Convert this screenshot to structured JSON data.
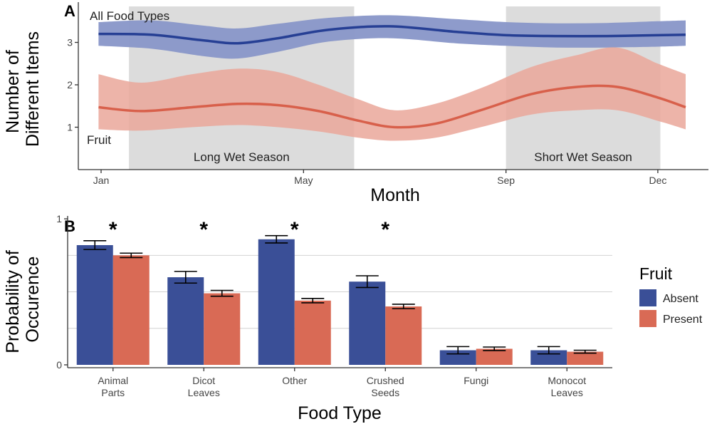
{
  "colors": {
    "absent": "#3a4f97",
    "present": "#d96a55",
    "all_line": "#263f94",
    "all_band": "#8896c8",
    "fruit_line": "#d8604b",
    "fruit_band": "#eaa79a",
    "season": "#dcdcdc",
    "grid": "#d2d2d2",
    "axis": "#333333"
  },
  "chart_data": [
    {
      "type": "line",
      "panel": "A",
      "xlabel": "Month",
      "ylabel": [
        "Number of",
        "Different Items"
      ],
      "x_ticks": [
        {
          "label": "Jan",
          "value": 1
        },
        {
          "label": "May",
          "value": 5
        },
        {
          "label": "Sep",
          "value": 9
        },
        {
          "label": "Dec",
          "value": 12
        }
      ],
      "y_ticks": [
        1,
        2,
        3
      ],
      "xlim": [
        0.55,
        13.0
      ],
      "ylim": [
        0.0,
        3.95
      ],
      "seasons": [
        {
          "label": "Long Wet Season",
          "start": 1.55,
          "end": 6.0
        },
        {
          "label": "Short Wet Season",
          "start": 9.0,
          "end": 12.05
        }
      ],
      "series": [
        {
          "name": "All Food Types",
          "x": [
            0.95,
            2.0,
            3.0,
            3.7,
            4.5,
            5.5,
            6.7,
            8.0,
            9.0,
            10.0,
            11.0,
            12.0,
            12.55
          ],
          "y": [
            3.2,
            3.18,
            3.05,
            2.98,
            3.1,
            3.3,
            3.38,
            3.25,
            3.17,
            3.15,
            3.15,
            3.17,
            3.18
          ],
          "lower": [
            2.92,
            2.85,
            2.68,
            2.62,
            2.78,
            3.02,
            3.1,
            2.98,
            2.92,
            2.88,
            2.88,
            2.9,
            2.92
          ],
          "upper": [
            3.48,
            3.52,
            3.4,
            3.33,
            3.44,
            3.58,
            3.64,
            3.55,
            3.48,
            3.45,
            3.46,
            3.5,
            3.52
          ]
        },
        {
          "name": "Fruit",
          "x": [
            0.95,
            1.8,
            2.8,
            3.7,
            4.5,
            5.3,
            6.1,
            6.8,
            7.6,
            8.5,
            9.5,
            10.4,
            11.2,
            12.0,
            12.55
          ],
          "y": [
            1.47,
            1.38,
            1.47,
            1.55,
            1.52,
            1.38,
            1.15,
            1.0,
            1.08,
            1.4,
            1.78,
            1.95,
            1.95,
            1.7,
            1.47
          ],
          "lower": [
            0.95,
            0.92,
            1.0,
            1.05,
            1.0,
            0.9,
            0.75,
            0.68,
            0.75,
            1.0,
            1.3,
            1.4,
            1.4,
            1.15,
            0.95
          ],
          "upper": [
            2.25,
            2.05,
            2.25,
            2.38,
            2.3,
            2.0,
            1.65,
            1.4,
            1.55,
            1.92,
            2.42,
            2.7,
            2.88,
            2.5,
            2.25
          ]
        }
      ]
    },
    {
      "type": "bar",
      "panel": "B",
      "xlabel": "Food Type",
      "ylabel": [
        "Probability of",
        "Occurence"
      ],
      "ylim": [
        0,
        1.02
      ],
      "y_ticks": [
        0,
        1
      ],
      "grid_y": [
        0.25,
        0.5,
        0.75
      ],
      "categories": [
        [
          "Animal",
          "Parts"
        ],
        [
          "Dicot",
          "Leaves"
        ],
        [
          "Other"
        ],
        [
          "Crushed",
          "Seeds"
        ],
        [
          "Fungi"
        ],
        [
          "Monocot",
          "Leaves"
        ]
      ],
      "significant": [
        true,
        true,
        true,
        true,
        false,
        false
      ],
      "significance_marker": "*",
      "series": [
        {
          "name": "Absent",
          "values": [
            0.82,
            0.6,
            0.86,
            0.57,
            0.1,
            0.1
          ],
          "err": [
            0.03,
            0.04,
            0.025,
            0.04,
            0.025,
            0.025
          ]
        },
        {
          "name": "Present",
          "values": [
            0.75,
            0.49,
            0.44,
            0.4,
            0.11,
            0.09
          ],
          "err": [
            0.015,
            0.02,
            0.015,
            0.015,
            0.012,
            0.01
          ]
        }
      ],
      "legend": {
        "title": "Fruit",
        "position": "right",
        "entries": [
          "Absent",
          "Present"
        ]
      }
    }
  ]
}
